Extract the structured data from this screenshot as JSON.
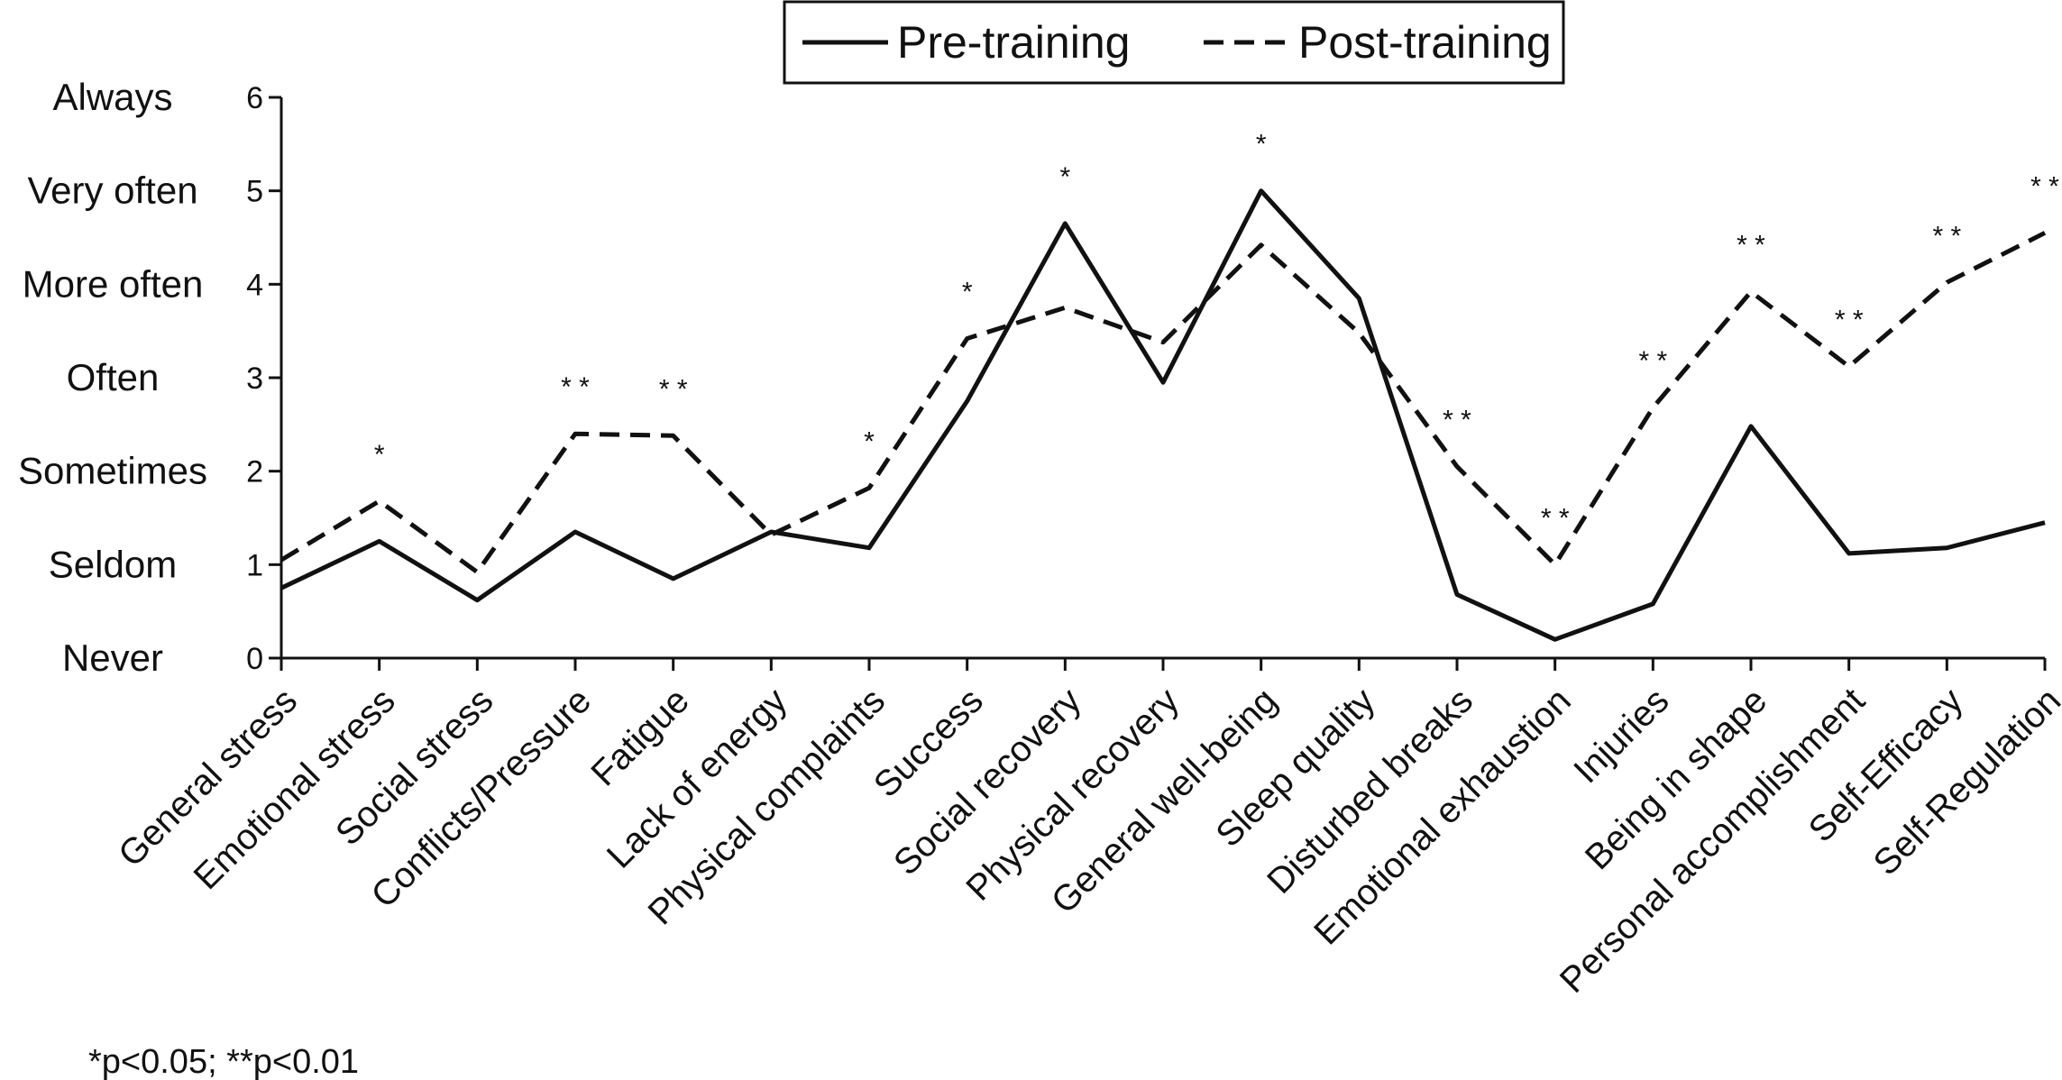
{
  "chart_data": {
    "type": "line",
    "categories": [
      "General stress",
      "Emotional stress",
      "Social stress",
      "Conflicts/Pressure",
      "Fatigue",
      "Lack of energy",
      "Physical complaints",
      "Success",
      "Social recovery",
      "Physical recovery",
      "General well-being",
      "Sleep quality",
      "Disturbed breaks",
      "Emotional exhaustion",
      "Injuries",
      "Being in shape",
      "Personal accomplishment",
      "Self-Efficacy",
      "Self-Regulation"
    ],
    "series": [
      {
        "name": "Pre-training",
        "style": "solid",
        "values": [
          0.75,
          1.25,
          0.62,
          1.35,
          0.85,
          1.35,
          1.18,
          2.75,
          4.65,
          2.95,
          5.0,
          3.85,
          0.68,
          0.2,
          0.58,
          2.48,
          1.12,
          1.18,
          1.45
        ]
      },
      {
        "name": "Post-training",
        "style": "dashed",
        "values": [
          1.05,
          1.68,
          0.92,
          2.4,
          2.38,
          1.32,
          1.82,
          3.42,
          3.75,
          3.38,
          4.42,
          3.48,
          2.05,
          1.0,
          2.68,
          3.92,
          3.12,
          4.02,
          4.55
        ]
      }
    ],
    "significance": [
      "",
      "*",
      "",
      "**",
      "**",
      "",
      "*",
      "*",
      "*",
      "",
      "*",
      "",
      "**",
      "**",
      "**",
      "**",
      "**",
      "**",
      "**"
    ],
    "y_ticks": [
      0,
      1,
      2,
      3,
      4,
      5,
      6
    ],
    "y_tick_words": [
      "Never",
      "Seldom",
      "Sometimes",
      "Often",
      "More often",
      "Very often",
      "Always"
    ],
    "ylim": [
      0,
      6
    ],
    "legend_position": "top-center",
    "footnote": "*p<0.05; **p<0.01"
  }
}
